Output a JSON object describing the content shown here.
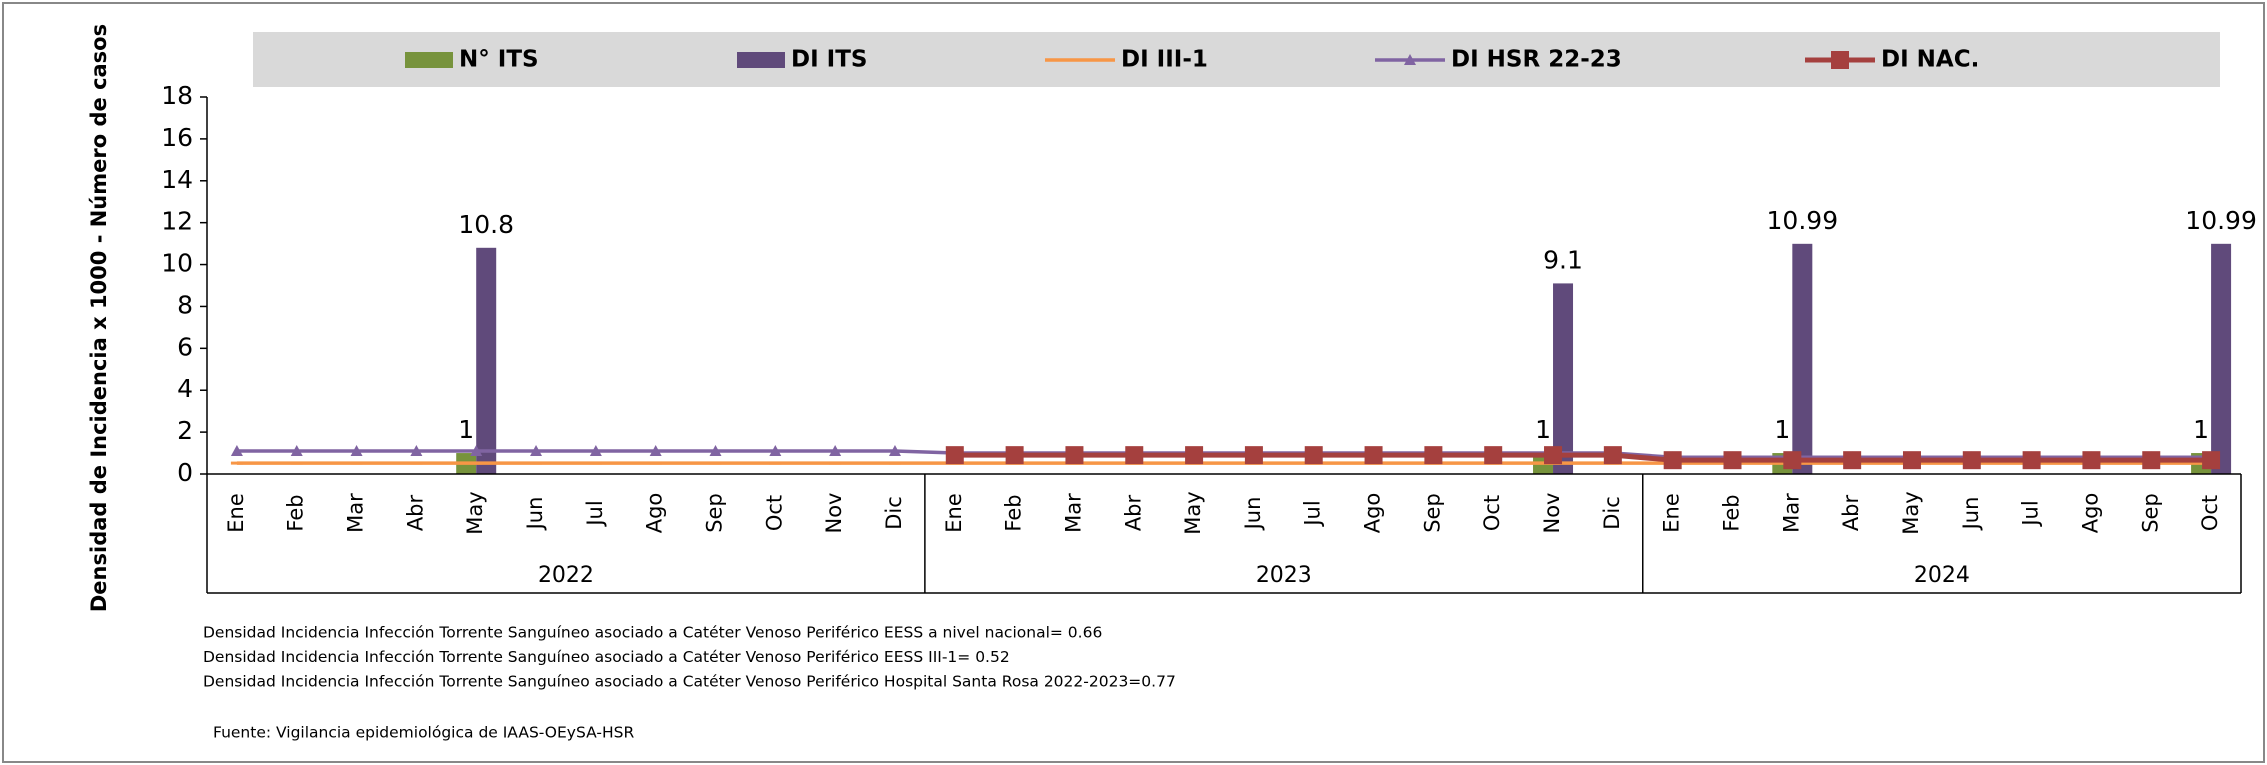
{
  "chart_data": {
    "type": "bar",
    "ylabel": "Densidad de Incidencia x 1000 - Número de casos",
    "categories": [
      "Ene",
      "Feb",
      "Mar",
      "Abr",
      "May",
      "Jun",
      "Jul",
      "Ago",
      "Sep",
      "Oct",
      "Nov",
      "Dic",
      "Ene",
      "Feb",
      "Mar",
      "Abr",
      "May",
      "Jun",
      "Jul",
      "Ago",
      "Sep",
      "Oct",
      "Nov",
      "Dic",
      "Ene",
      "Feb",
      "Mar",
      "Abr",
      "May",
      "Jun",
      "Jul",
      "Ago",
      "Sep",
      "Oct"
    ],
    "groups": [
      {
        "label": "2022",
        "count": 12
      },
      {
        "label": "2023",
        "count": 12
      },
      {
        "label": "2024",
        "count": 10
      }
    ],
    "ylim": [
      0,
      18
    ],
    "yticks": [
      0,
      2,
      4,
      6,
      8,
      10,
      12,
      14,
      16,
      18
    ],
    "series": [
      {
        "name": "N° ITS",
        "type": "bar",
        "color": "#77933c",
        "values": [
          null,
          null,
          null,
          null,
          1,
          null,
          null,
          null,
          null,
          null,
          null,
          null,
          null,
          null,
          null,
          null,
          null,
          null,
          null,
          null,
          null,
          null,
          1,
          null,
          null,
          null,
          1,
          null,
          null,
          null,
          null,
          null,
          null,
          1
        ]
      },
      {
        "name": "DI ITS",
        "type": "bar",
        "color": "#604a7b",
        "values": [
          null,
          null,
          null,
          null,
          10.8,
          null,
          null,
          null,
          null,
          null,
          null,
          null,
          null,
          null,
          null,
          null,
          null,
          null,
          null,
          null,
          null,
          null,
          9.1,
          null,
          null,
          null,
          10.99,
          null,
          null,
          null,
          null,
          null,
          null,
          10.99
        ]
      },
      {
        "name": "DI III-1",
        "type": "line",
        "color": "#f79646",
        "marker": "dash",
        "values": [
          0.52,
          0.52,
          0.52,
          0.52,
          0.52,
          0.52,
          0.52,
          0.52,
          0.52,
          0.52,
          0.52,
          0.52,
          0.52,
          0.52,
          0.52,
          0.52,
          0.52,
          0.52,
          0.52,
          0.52,
          0.52,
          0.52,
          0.52,
          0.52,
          0.52,
          0.52,
          0.52,
          0.52,
          0.52,
          0.52,
          0.52,
          0.52,
          0.52,
          0.52
        ]
      },
      {
        "name": "DI HSR 22-23",
        "type": "line",
        "color": "#8064a2",
        "marker": "triangle",
        "values": [
          1.1,
          1.1,
          1.1,
          1.1,
          1.1,
          1.1,
          1.1,
          1.1,
          1.1,
          1.1,
          1.1,
          1.1,
          1.0,
          1.0,
          1.0,
          1.0,
          1.0,
          1.0,
          1.0,
          1.0,
          1.0,
          1.0,
          1.0,
          1.0,
          0.8,
          0.8,
          0.8,
          0.8,
          0.8,
          0.8,
          0.8,
          0.8,
          0.8,
          0.8
        ]
      },
      {
        "name": "DI NAC.",
        "type": "line",
        "color": "#a5403e",
        "marker": "square",
        "values": [
          null,
          null,
          null,
          null,
          null,
          null,
          null,
          null,
          null,
          null,
          null,
          null,
          0.9,
          0.9,
          0.9,
          0.9,
          0.9,
          0.9,
          0.9,
          0.9,
          0.9,
          0.9,
          0.9,
          0.9,
          0.66,
          0.66,
          0.66,
          0.66,
          0.66,
          0.66,
          0.66,
          0.66,
          0.66,
          0.66
        ]
      }
    ],
    "notes": [
      "Densidad Incidencia Infección Torrente Sanguíneo asociado a Catéter Venoso Periférico  EESS a nivel nacional= 0.66",
      "Densidad Incidencia Infección Torrente Sanguíneo asociado a Catéter Venoso Periférico  EESS III-1= 0.52",
      "Densidad Incidencia Infección Torrente Sanguíneo asociado a Catéter Venoso Periférico Hospital Santa Rosa 2022-2023=0.77"
    ],
    "source": "Fuente:  Vigilancia epidemiológica de IAAS-OEySA-HSR"
  }
}
